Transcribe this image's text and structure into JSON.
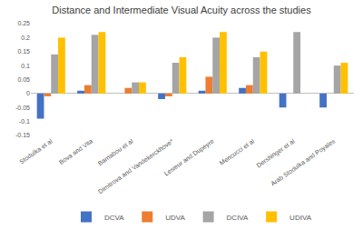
{
  "chart_data": {
    "type": "bar",
    "title": "Distance and Intermediate Visual Acuity across the studies",
    "categories": [
      "Stodulka et al",
      "Bova and Vita",
      "Barnabou et al",
      "Dimitrova and Vandekerckhove*",
      "Lesieur and Dupeyre",
      "Mencucci et al",
      "Dershinger et al",
      "Arab Stodulka and Poyales"
    ],
    "series": [
      {
        "name": "DCVA",
        "color": "#4472c4",
        "values": [
          -0.09,
          0.01,
          0,
          -0.02,
          0.01,
          0.02,
          -0.05,
          -0.05
        ]
      },
      {
        "name": "UDVA",
        "color": "#ed7d31",
        "values": [
          -0.01,
          0.03,
          0.02,
          -0.01,
          0.06,
          0.03,
          0,
          0
        ]
      },
      {
        "name": "DCIVA",
        "color": "#a5a5a5",
        "values": [
          0.14,
          0.21,
          0.04,
          0.11,
          0.2,
          0.13,
          0.22,
          0.1
        ]
      },
      {
        "name": "UDIVA",
        "color": "#ffc000",
        "values": [
          0.2,
          0.22,
          0.04,
          0.13,
          0.22,
          0.15,
          0,
          0.11
        ]
      }
    ],
    "ylim": [
      -0.15,
      0.25
    ],
    "yticks": [
      -0.15,
      -0.1,
      -0.05,
      0,
      0.05,
      0.1,
      0.15,
      0.2,
      0.25
    ],
    "grid": false,
    "legend": "bottom"
  }
}
